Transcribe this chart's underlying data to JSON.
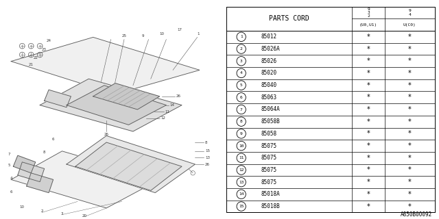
{
  "title": "A850B00092",
  "parts_cord_header": "PARTS CORD",
  "header_col1_top": "9\n3\n2",
  "header_col2_top": "9\n4",
  "header_col1_sub": "(U0,U1)",
  "header_col2_sub": "U(C0)",
  "parts": [
    {
      "num": "1",
      "code": "85012"
    },
    {
      "num": "2",
      "code": "85026A"
    },
    {
      "num": "3",
      "code": "85026"
    },
    {
      "num": "4",
      "code": "85020"
    },
    {
      "num": "5",
      "code": "85040"
    },
    {
      "num": "6",
      "code": "85063"
    },
    {
      "num": "7",
      "code": "85064A"
    },
    {
      "num": "8",
      "code": "85058B"
    },
    {
      "num": "9",
      "code": "85058"
    },
    {
      "num": "10",
      "code": "85075"
    },
    {
      "num": "11",
      "code": "85075"
    },
    {
      "num": "12",
      "code": "85075"
    },
    {
      "num": "13",
      "code": "85075"
    },
    {
      "num": "14",
      "code": "85018A"
    },
    {
      "num": "15",
      "code": "85018B"
    }
  ],
  "bg_color": "#ffffff",
  "line_color": "#000000",
  "text_color": "#000000"
}
